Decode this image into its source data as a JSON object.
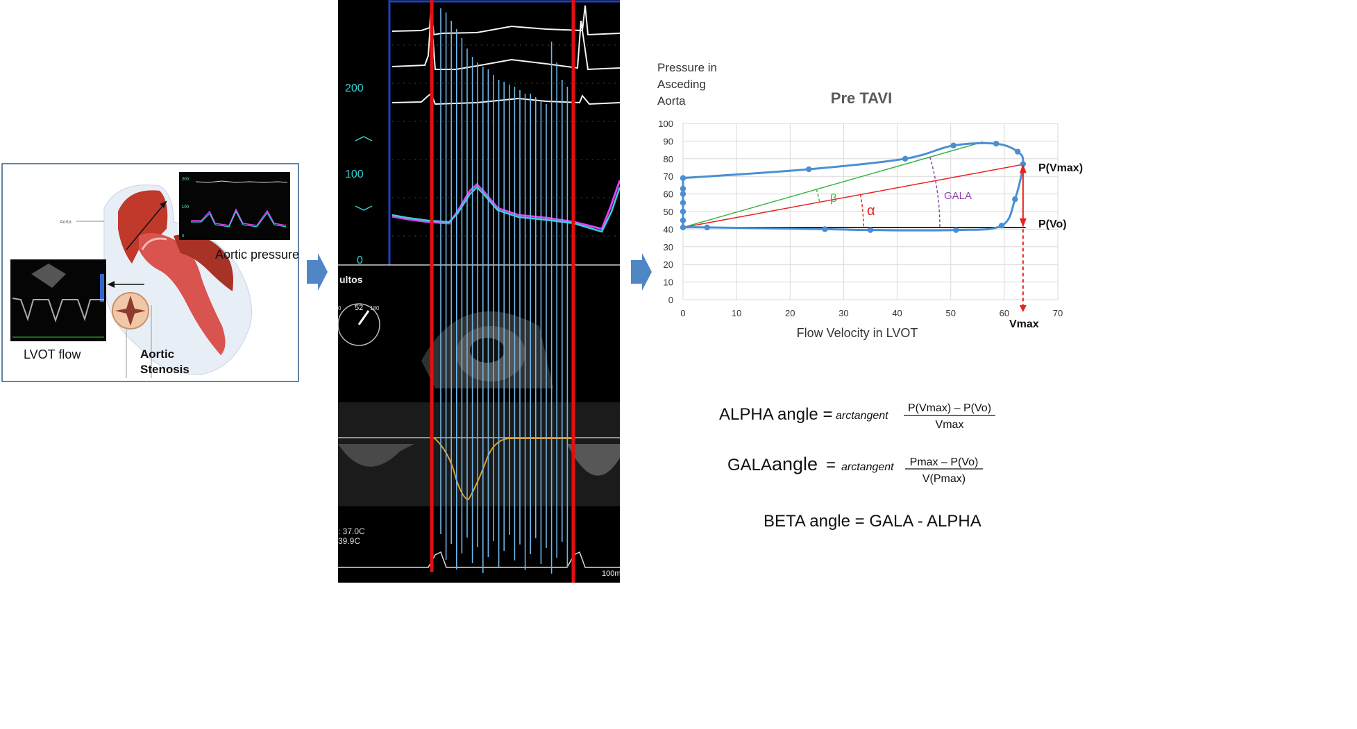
{
  "left_panel": {
    "label_aorta": "Aorta",
    "label_aortic_pressure": "Aortic pressure",
    "label_lvot_flow": "LVOT flow",
    "label_stenosis_line1": "Aortic",
    "label_stenosis_line2": "Stenosis"
  },
  "middle_panel": {
    "pressure_scale": [
      "200",
      "100",
      "0"
    ],
    "echo_text": "ultos",
    "angle_label": "52",
    "angle_min": "0",
    "angle_max": "180",
    "temp1": ": 37.0C",
    "temp2": "39.9C",
    "scale_label": "100m"
  },
  "chart_data": {
    "type": "scatter",
    "title": "Pre TAVI",
    "xlabel": "Flow Velocity in LVOT",
    "ylabel_lines": [
      "Pressure in",
      "Asceding",
      "Aorta"
    ],
    "xlim": [
      0,
      70
    ],
    "ylim": [
      0,
      100
    ],
    "xticks": [
      "0",
      "10",
      "20",
      "30",
      "40",
      "50",
      "60",
      "70"
    ],
    "yticks": [
      "0",
      "10",
      "20",
      "30",
      "40",
      "50",
      "60",
      "70",
      "80",
      "90",
      "100"
    ],
    "loop_points": [
      [
        0,
        41
      ],
      [
        0,
        45
      ],
      [
        0,
        50
      ],
      [
        0,
        55
      ],
      [
        0,
        60
      ],
      [
        0,
        63
      ],
      [
        0,
        69
      ],
      [
        23.5,
        74
      ],
      [
        41.5,
        80
      ],
      [
        50.5,
        87.5
      ],
      [
        58.5,
        88.5
      ],
      [
        62.5,
        84
      ],
      [
        63.5,
        77
      ],
      [
        62,
        57
      ],
      [
        59.5,
        42
      ],
      [
        51,
        39.5
      ],
      [
        35,
        39.5
      ],
      [
        26.5,
        40
      ],
      [
        4.5,
        41
      ]
    ],
    "lines": {
      "gala": [
        [
          0,
          41
        ],
        [
          56,
          89.5
        ]
      ],
      "alpha": [
        [
          0,
          41
        ],
        [
          64,
          77
        ]
      ],
      "baseline": [
        [
          0,
          41
        ],
        [
          64,
          41
        ]
      ]
    },
    "annotations": {
      "beta": "β",
      "alpha": "α",
      "gala": "GALA",
      "p_vmax": "P(Vmax)",
      "p_vo": "P(Vo)",
      "vmax": "Vmax"
    },
    "colors": {
      "loop": "#4a8fd4",
      "gala_line": "#3cb34a",
      "alpha_line": "#e8231f",
      "baseline": "#111111",
      "gala_arc": "#8e44ad"
    }
  },
  "formulas": {
    "alpha_prefix": "ALPHA angle =",
    "alpha_func": "arctangent",
    "alpha_num": "P(Vmax) – P(Vo)",
    "alpha_den": "Vmax",
    "gala_prefix_a": "GALA ",
    "gala_prefix_b": "angle",
    "gala_prefix_c": " =",
    "gala_func": "arctangent",
    "gala_num": "Pmax – P(Vo)",
    "gala_den": "V(Pmax)",
    "beta": "BETA angle = GALA - ALPHA"
  }
}
